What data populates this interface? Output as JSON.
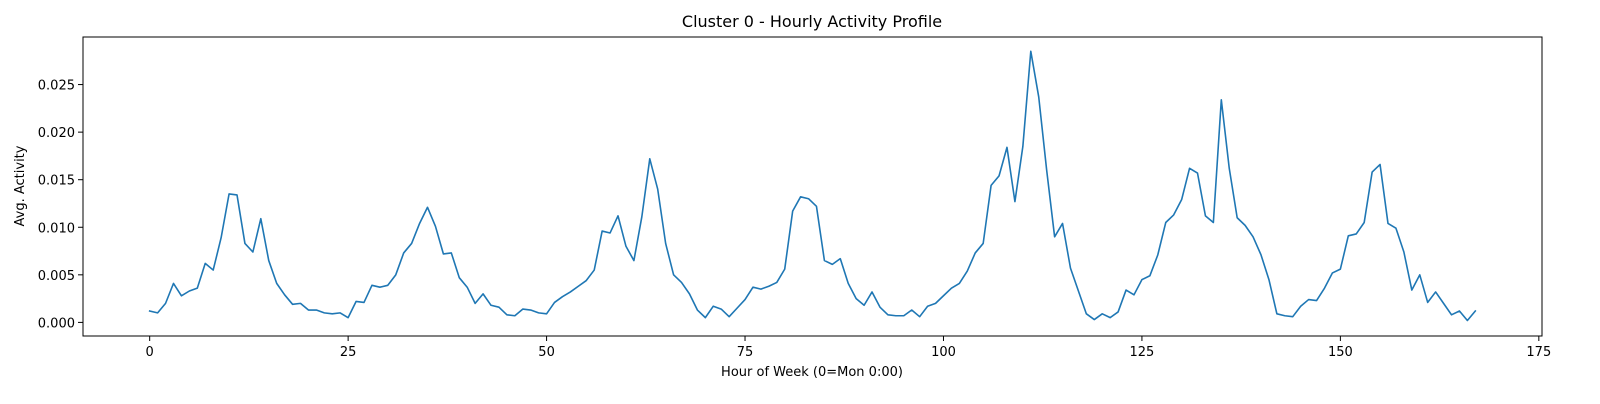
{
  "chart_data": {
    "type": "line",
    "title": "Cluster 0 - Hourly Activity Profile",
    "xlabel": "Hour of Week (0=Mon 0:00)",
    "ylabel": "Avg. Activity",
    "xlim": [
      -8.4,
      175.4
    ],
    "ylim": [
      -0.00143,
      0.03
    ],
    "x_ticks": [
      0,
      25,
      50,
      75,
      100,
      125,
      150,
      175
    ],
    "x_tick_labels": [
      "0",
      "25",
      "50",
      "75",
      "100",
      "125",
      "150",
      "175"
    ],
    "y_ticks": [
      0.0,
      0.005,
      0.01,
      0.015,
      0.02,
      0.025
    ],
    "y_tick_labels": [
      "0.000",
      "0.005",
      "0.010",
      "0.015",
      "0.020",
      "0.025"
    ],
    "grid": false,
    "colors": {
      "line": "#1f77b4",
      "axes": "#000000",
      "background": "#ffffff"
    },
    "series": [
      {
        "x_start": 0,
        "x_step": 1,
        "values": [
          0.0012,
          0.001,
          0.002,
          0.0041,
          0.0028,
          0.0033,
          0.0036,
          0.0062,
          0.0055,
          0.0089,
          0.0135,
          0.0134,
          0.0083,
          0.0074,
          0.0109,
          0.0065,
          0.0041,
          0.0029,
          0.0019,
          0.002,
          0.0013,
          0.0013,
          0.001,
          0.0009,
          0.001,
          0.0005,
          0.0022,
          0.0021,
          0.0039,
          0.0037,
          0.0039,
          0.005,
          0.0073,
          0.0083,
          0.0104,
          0.0121,
          0.0101,
          0.0072,
          0.0073,
          0.0047,
          0.0037,
          0.002,
          0.003,
          0.0018,
          0.0016,
          0.0008,
          0.0007,
          0.0014,
          0.0013,
          0.001,
          0.0009,
          0.0021,
          0.0027,
          0.0032,
          0.0038,
          0.0044,
          0.0055,
          0.0096,
          0.0094,
          0.0112,
          0.008,
          0.0065,
          0.0111,
          0.0172,
          0.014,
          0.0083,
          0.005,
          0.0042,
          0.003,
          0.0013,
          0.0005,
          0.0017,
          0.0014,
          0.0006,
          0.0015,
          0.0024,
          0.0037,
          0.0035,
          0.0038,
          0.0042,
          0.0056,
          0.0117,
          0.0132,
          0.013,
          0.0122,
          0.0065,
          0.0061,
          0.0067,
          0.0041,
          0.0025,
          0.0018,
          0.0032,
          0.0016,
          0.0008,
          0.0007,
          0.0007,
          0.0013,
          0.0006,
          0.0017,
          0.002,
          0.0028,
          0.0036,
          0.0041,
          0.0054,
          0.0073,
          0.0083,
          0.0144,
          0.0154,
          0.0184,
          0.0127,
          0.0185,
          0.0285,
          0.0237,
          0.016,
          0.009,
          0.0104,
          0.0057,
          0.0033,
          0.0009,
          0.0003,
          0.0009,
          0.0005,
          0.0011,
          0.0034,
          0.0029,
          0.0045,
          0.0049,
          0.0071,
          0.0105,
          0.0113,
          0.0129,
          0.0162,
          0.0157,
          0.0112,
          0.0105,
          0.0234,
          0.0162,
          0.011,
          0.0102,
          0.009,
          0.0071,
          0.0045,
          0.0009,
          0.0007,
          0.0006,
          0.0017,
          0.0024,
          0.0023,
          0.0036,
          0.0052,
          0.0056,
          0.0091,
          0.0093,
          0.0105,
          0.0158,
          0.0166,
          0.0104,
          0.0099,
          0.0074,
          0.0034,
          0.005,
          0.0021,
          0.0032,
          0.002,
          0.0008,
          0.0012,
          0.0002,
          0.0012
        ]
      }
    ]
  }
}
